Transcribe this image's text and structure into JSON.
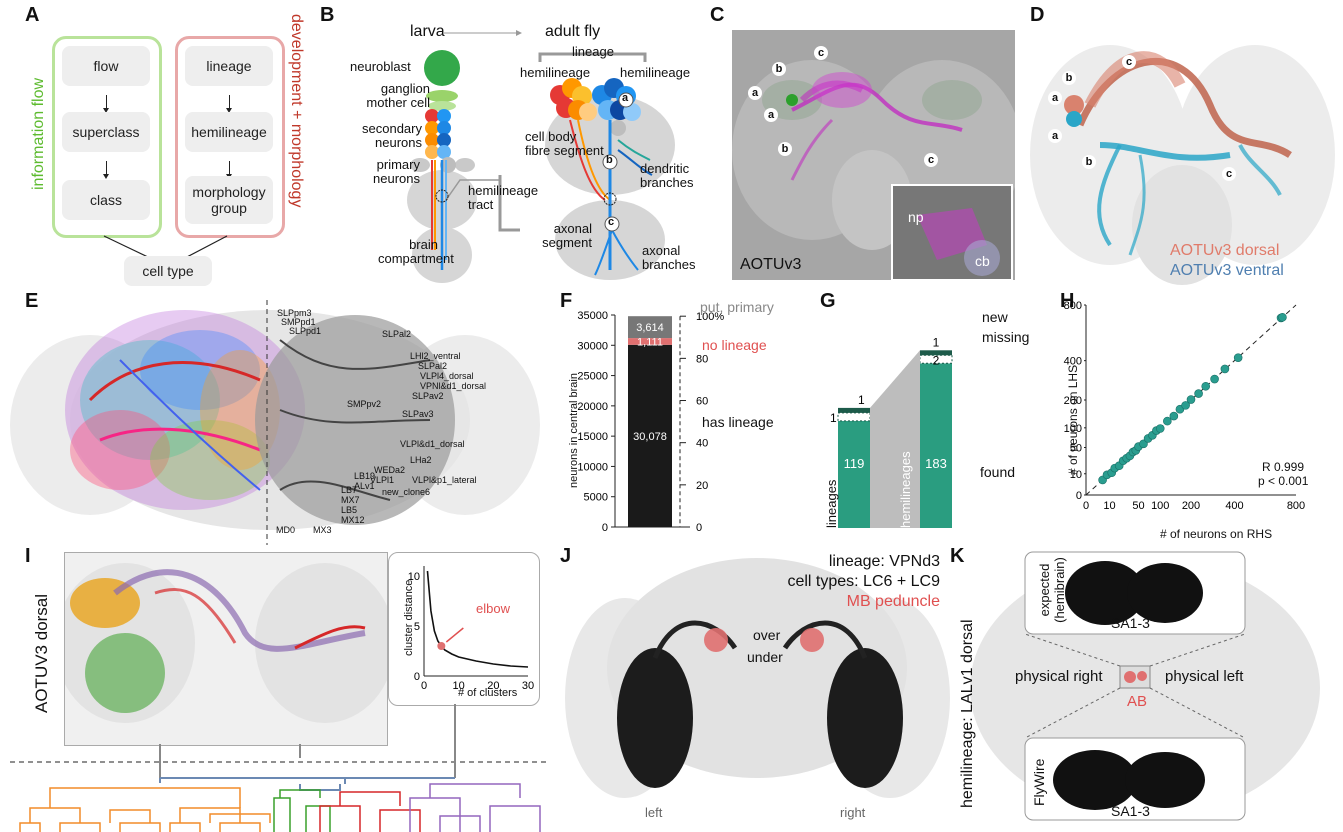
{
  "labels": {
    "A": "A",
    "B": "B",
    "C": "C",
    "D": "D",
    "E": "E",
    "F": "F",
    "G": "G",
    "H": "H",
    "I": "I",
    "J": "J",
    "K": "K"
  },
  "panelA": {
    "left_title": "information flow",
    "right_title": "development + morphology",
    "left_items": [
      "flow",
      "superclass",
      "class"
    ],
    "right_items": [
      "lineage",
      "hemilineage",
      "morphology group"
    ],
    "bottom": "cell type",
    "colors": {
      "green": "#b9e39a",
      "red": "#e8a8a8",
      "title_green": "#5dbb2f",
      "title_red": "#c0392b"
    }
  },
  "panelB": {
    "larva": "larva",
    "adult": "adult fly",
    "lineage": "lineage",
    "hemilineage_left": "hemilineage",
    "hemilineage_right": "hemilineage",
    "neuroblast": "neuroblast",
    "gmc": "ganglion mother cell",
    "secondary": "secondary neurons",
    "primary": "primary neurons",
    "tract": "hemilineage tract",
    "compartment": "brain compartment",
    "cellbody": "cell body fibre segment",
    "dendritic": "dendritic branches",
    "axonal_seg": "axonal segment",
    "axonal_br": "axonal branches",
    "a": "a",
    "b": "b",
    "c": "c"
  },
  "panelC": {
    "title": "AOTUv3",
    "np": "np",
    "cb": "cb",
    "markers": [
      "a",
      "a",
      "b",
      "b",
      "c",
      "c"
    ]
  },
  "panelD": {
    "dorsal": "AOTUv3 dorsal",
    "ventral": "AOTUv3 ventral",
    "markers": [
      "a",
      "a",
      "b",
      "b",
      "c",
      "c"
    ],
    "colors": {
      "dorsal": "#e07b6a",
      "ventral": "#4f7fb0"
    }
  },
  "panelE": {
    "left_labels": [
      "SLPpm3",
      "SMPpd1",
      "SLPpd1",
      "SLPal2",
      "LHl2_ventral",
      "SLPal2",
      "VLPl4_dorsal",
      "VPNl&d1_dorsal",
      "SLPav2",
      "SLPav3",
      "SMPpv2",
      "VLPl&d1_dorsal",
      "LHa2",
      "VLPl&p1_lateral",
      "WEDa2",
      "VLPl1",
      "LB19",
      "LB7",
      "ALv1",
      "new_clone6",
      "MX7",
      "LB5",
      "MX12",
      "MD0",
      "MX3"
    ]
  },
  "panelF": {
    "ylabel": "neurons in central brain",
    "yticks": [
      "0",
      "5000",
      "10000",
      "15000",
      "20000",
      "25000",
      "30000",
      "35000"
    ],
    "right_ticks": [
      "0",
      "20",
      "40",
      "60",
      "80",
      "100%"
    ],
    "put_primary": "put. primary",
    "no_lineage": "no lineage",
    "has_lineage": "has lineage",
    "colors": {
      "has": "#1a1a1a",
      "no": "#e07070",
      "put": "#777777"
    }
  },
  "panelG": {
    "lineages": "lineages",
    "hemilineages": "hemilineages",
    "new": "new",
    "missing": "missing",
    "found": "found"
  },
  "panelH": {
    "ylabel": "# of neurons on LHS",
    "xlabel": "# of neurons on RHS",
    "stats_r": "R 0.999",
    "stats_p": "p < 0.001",
    "yticks": [
      "0",
      "10",
      "50",
      "100",
      "200",
      "400",
      "800"
    ],
    "xticks": [
      "0",
      "10",
      "50",
      "100",
      "200",
      "400",
      "800"
    ],
    "color": "#2a9d8f"
  },
  "panelI": {
    "title": "AOTUV3 dorsal",
    "ylabel": "cluster distance",
    "xlabel": "# of clusters",
    "elbow": "elbow",
    "yticks": [
      "0",
      "5",
      "10"
    ],
    "xticks": [
      "0",
      "10",
      "20",
      "30"
    ],
    "colors": [
      "#f28c28",
      "#3aa02c",
      "#d62728",
      "#9467bd"
    ]
  },
  "panelJ": {
    "line1": "lineage: VPNd3",
    "line2": "cell types: LC6 + LC9",
    "line3": "MB peduncle",
    "over": "over",
    "under": "under",
    "left": "left",
    "right": "right"
  },
  "panelK": {
    "vlabel": "hemilineage: LALv1 dorsal",
    "expected": "expected (hemibrain)",
    "flywire": "FlyWire",
    "sa_top": "SA1-3",
    "sa_bot": "SA1-3",
    "phys_right": "physical right",
    "phys_left": "physical left",
    "ab": "AB"
  },
  "chart_data": [
    {
      "type": "bar",
      "panel": "F",
      "categories": [
        "central brain"
      ],
      "series": [
        {
          "name": "has lineage",
          "values": [
            30078
          ]
        },
        {
          "name": "no lineage",
          "values": [
            1111
          ]
        },
        {
          "name": "put. primary",
          "values": [
            3614
          ]
        }
      ],
      "ylabel": "neurons in central brain",
      "ylim": [
        0,
        35000
      ]
    },
    {
      "type": "bar",
      "panel": "G",
      "categories": [
        "lineages",
        "hemilineages"
      ],
      "series": [
        {
          "name": "found",
          "values": [
            119,
            183
          ]
        },
        {
          "name": "missing",
          "values": [
            1,
            2
          ]
        },
        {
          "name": "new",
          "values": [
            1,
            1
          ]
        }
      ]
    },
    {
      "type": "scatter",
      "panel": "H",
      "xlabel": "# of neurons on RHS",
      "ylabel": "# of neurons on LHS",
      "xlim": [
        0,
        800
      ],
      "ylim": [
        0,
        800
      ],
      "points": [
        [
          5,
          5
        ],
        [
          8,
          9
        ],
        [
          12,
          11
        ],
        [
          15,
          16
        ],
        [
          20,
          19
        ],
        [
          25,
          26
        ],
        [
          30,
          30
        ],
        [
          35,
          34
        ],
        [
          40,
          41
        ],
        [
          45,
          44
        ],
        [
          50,
          52
        ],
        [
          60,
          58
        ],
        [
          70,
          71
        ],
        [
          80,
          79
        ],
        [
          90,
          92
        ],
        [
          100,
          98
        ],
        [
          120,
          121
        ],
        [
          140,
          138
        ],
        [
          160,
          163
        ],
        [
          180,
          178
        ],
        [
          200,
          202
        ],
        [
          230,
          228
        ],
        [
          260,
          262
        ],
        [
          300,
          298
        ],
        [
          350,
          352
        ],
        [
          420,
          418
        ],
        [
          690,
          695
        ],
        [
          700,
          700
        ]
      ],
      "stats": {
        "R": "0.999",
        "p": "< 0.001"
      }
    },
    {
      "type": "line",
      "panel": "I",
      "xlabel": "# of clusters",
      "ylabel": "cluster distance",
      "xlim": [
        0,
        30
      ],
      "ylim": [
        0,
        11
      ],
      "x": [
        1,
        2,
        3,
        4,
        5,
        6,
        8,
        10,
        15,
        20,
        25,
        30
      ],
      "y": [
        10.5,
        6.5,
        4.5,
        3.5,
        3.0,
        2.6,
        2.2,
        1.9,
        1.5,
        1.2,
        1.0,
        0.9
      ],
      "annotation": "elbow at 5"
    }
  ]
}
